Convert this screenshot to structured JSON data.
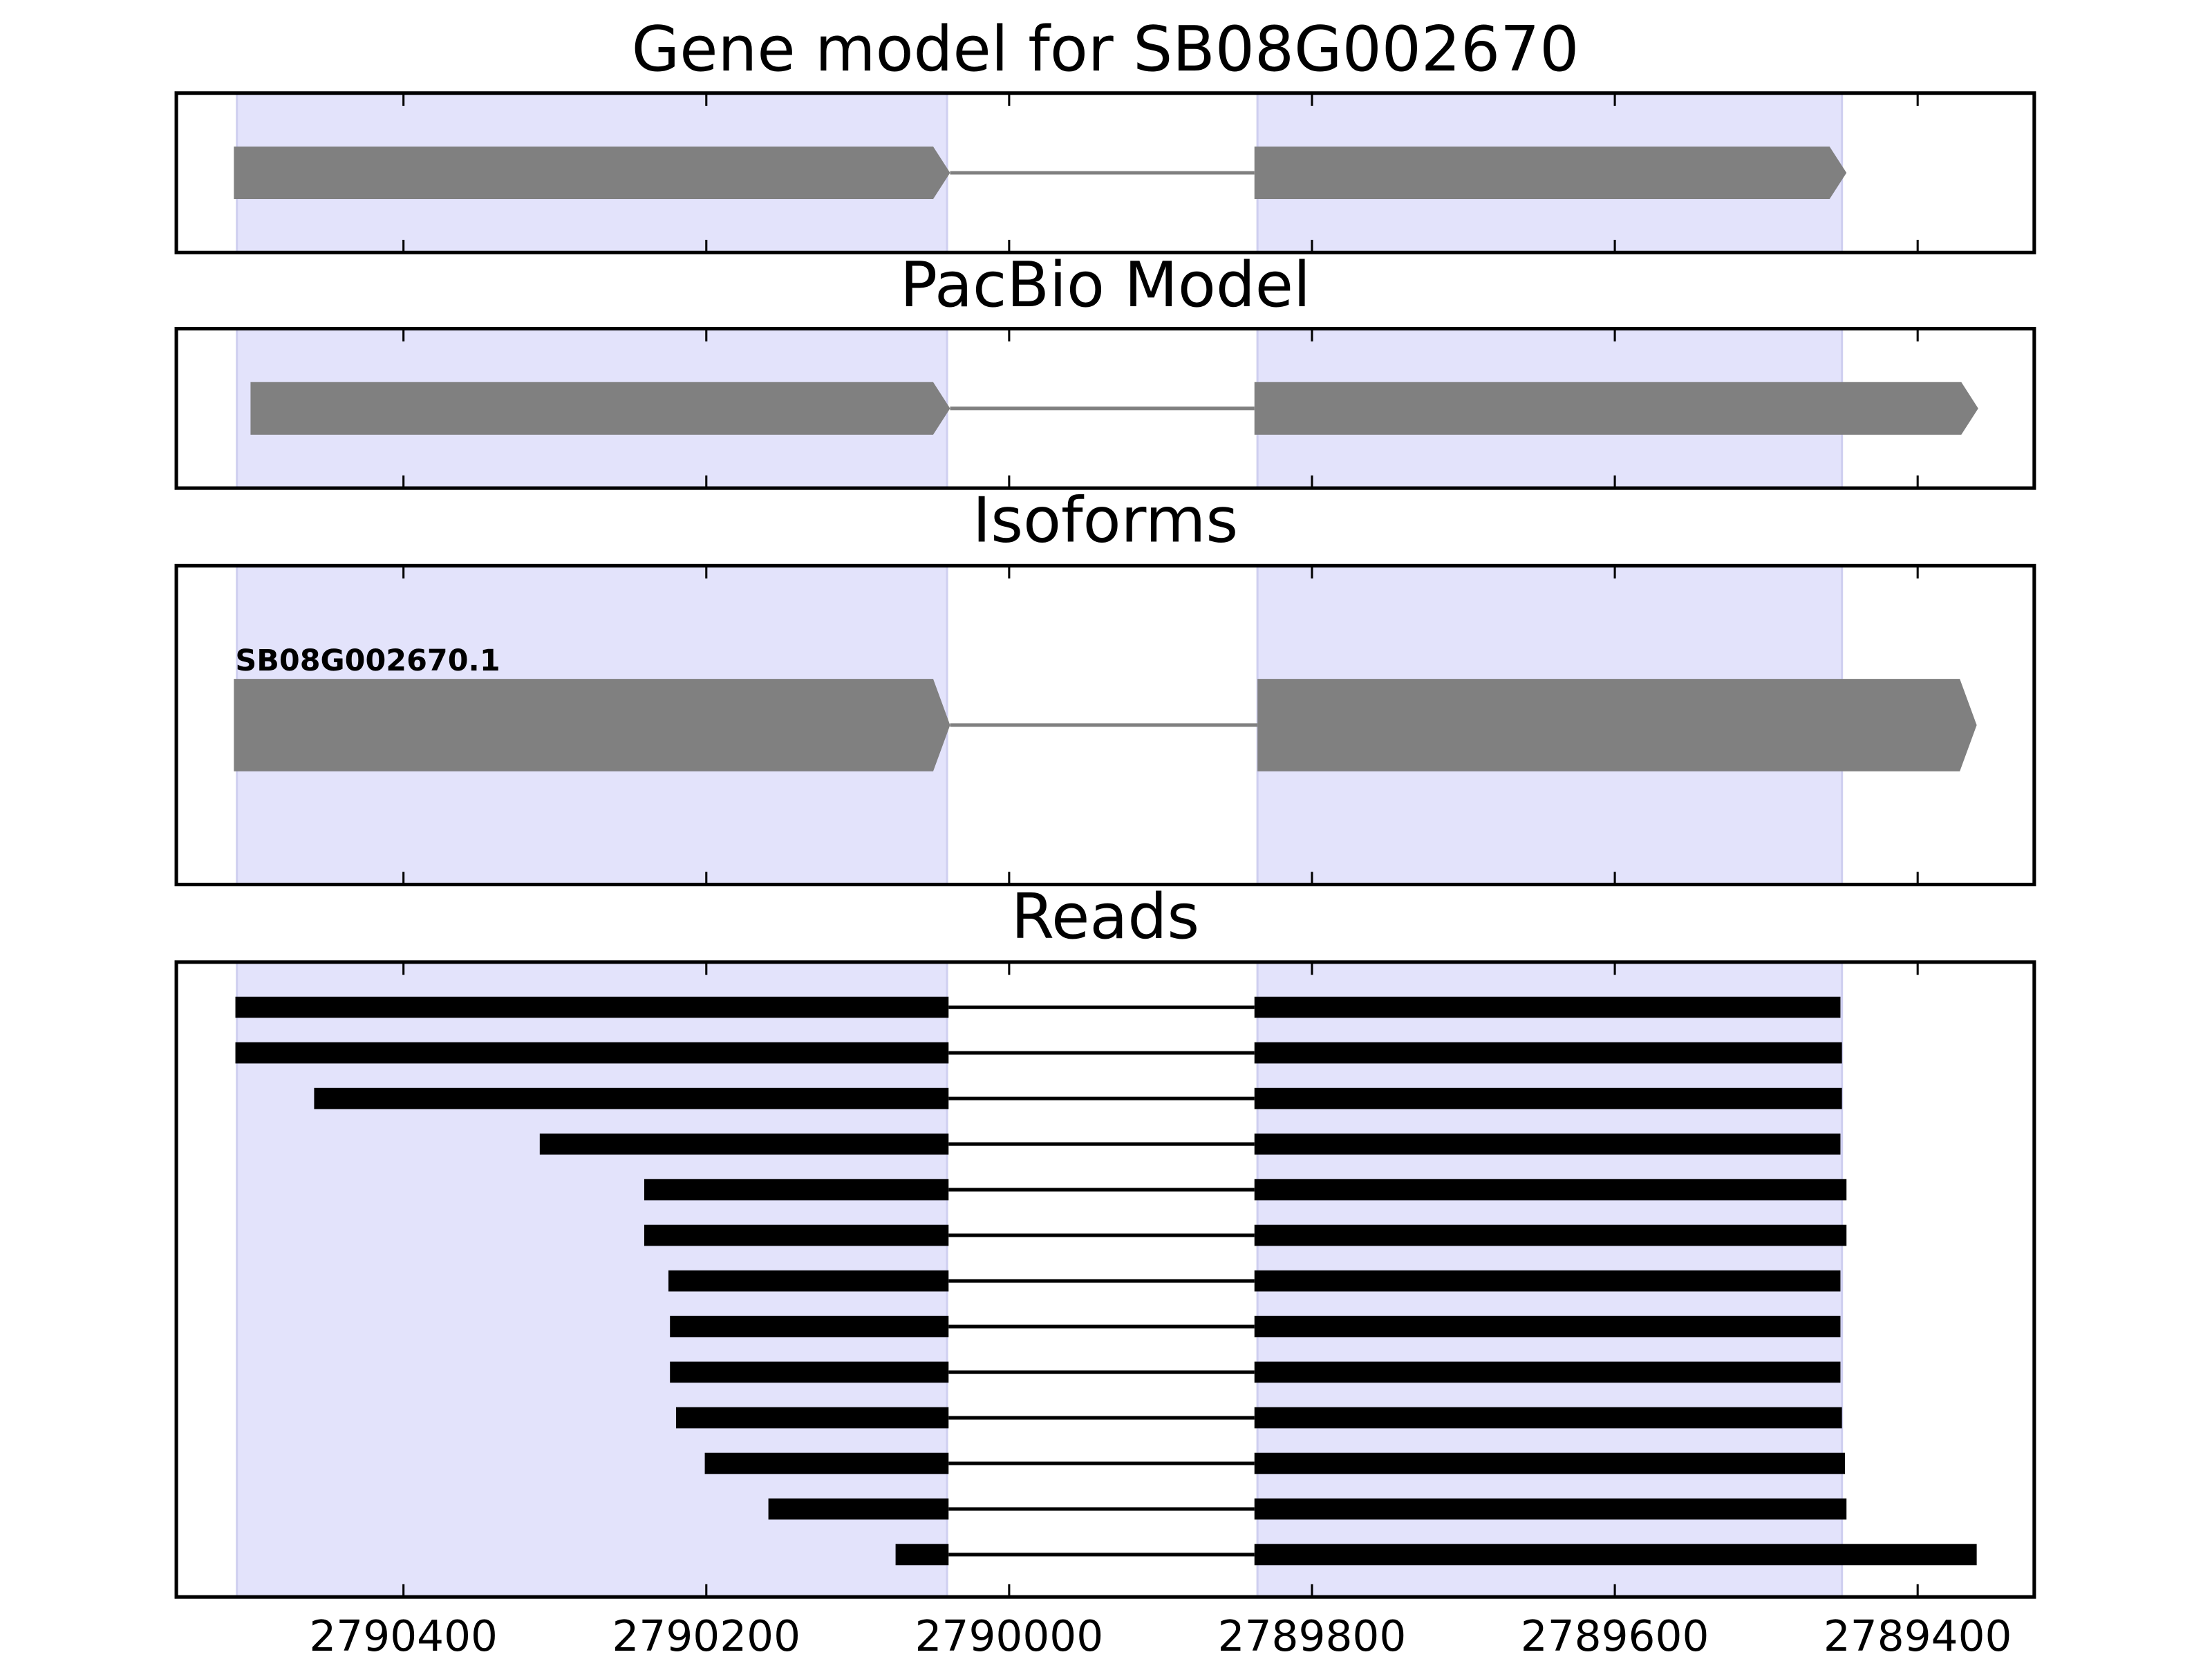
{
  "chart_data": {
    "type": "gene-tracks",
    "xlim": [
      2790550,
      2789323
    ],
    "xticks": [
      2790400,
      2790200,
      2790000,
      2789800,
      2789600,
      2789400
    ],
    "highlights": [
      [
        2790510,
        2790041
      ],
      [
        2789836,
        2789450
      ]
    ],
    "highlight_color": "#e3e3fb",
    "panels": [
      {
        "type": "gene",
        "title": "Gene model for SB08G002670",
        "color": "#808080",
        "exons": [
          [
            2790512,
            2790039
          ],
          [
            2789838,
            2789447
          ]
        ]
      },
      {
        "type": "gene",
        "title": "PacBio Model",
        "color": "#808080",
        "exons": [
          [
            2790501,
            2790039
          ],
          [
            2789838,
            2789360
          ]
        ]
      },
      {
        "type": "gene",
        "title": "Isoforms",
        "color": "#808080",
        "label": "SB08G002670.1",
        "exons": [
          [
            2790512,
            2790039
          ],
          [
            2789836,
            2789361
          ]
        ]
      },
      {
        "type": "reads",
        "title": "Reads",
        "color": "#000000",
        "reads": [
          [
            [
              2790511,
              2790040
            ],
            [
              2789838,
              2789451
            ]
          ],
          [
            [
              2790511,
              2790040
            ],
            [
              2789838,
              2789450
            ]
          ],
          [
            [
              2790459,
              2790040
            ],
            [
              2789838,
              2789450
            ]
          ],
          [
            [
              2790310,
              2790040
            ],
            [
              2789838,
              2789451
            ]
          ],
          [
            [
              2790241,
              2790040
            ],
            [
              2789838,
              2789447
            ]
          ],
          [
            [
              2790241,
              2790040
            ],
            [
              2789838,
              2789447
            ]
          ],
          [
            [
              2790225,
              2790040
            ],
            [
              2789838,
              2789451
            ]
          ],
          [
            [
              2790224,
              2790040
            ],
            [
              2789838,
              2789451
            ]
          ],
          [
            [
              2790224,
              2790040
            ],
            [
              2789838,
              2789451
            ]
          ],
          [
            [
              2790220,
              2790040
            ],
            [
              2789838,
              2789450
            ]
          ],
          [
            [
              2790201,
              2790040
            ],
            [
              2789838,
              2789448
            ]
          ],
          [
            [
              2790159,
              2790040
            ],
            [
              2789838,
              2789447
            ]
          ],
          [
            [
              2790075,
              2790040
            ],
            [
              2789838,
              2789361
            ]
          ]
        ]
      }
    ]
  }
}
